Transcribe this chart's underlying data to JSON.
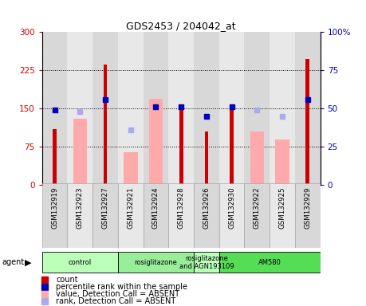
{
  "title": "GDS2453 / 204042_at",
  "samples": [
    "GSM132919",
    "GSM132923",
    "GSM132927",
    "GSM132921",
    "GSM132924",
    "GSM132928",
    "GSM132926",
    "GSM132930",
    "GSM132922",
    "GSM132925",
    "GSM132929"
  ],
  "red_counts": [
    110,
    0,
    237,
    0,
    0,
    152,
    105,
    152,
    0,
    0,
    248
  ],
  "pink_values": [
    0,
    130,
    0,
    65,
    170,
    0,
    0,
    0,
    105,
    90,
    0
  ],
  "blue_ranks_pct": [
    49,
    0,
    56,
    0,
    51,
    51,
    45,
    51,
    0,
    0,
    56
  ],
  "lavender_ranks_pct": [
    0,
    48,
    0,
    36,
    0,
    0,
    0,
    0,
    49,
    45,
    0
  ],
  "agent_groups": [
    {
      "label": "control",
      "start": 0,
      "end": 3,
      "color": "#bbffbb"
    },
    {
      "label": "rosiglitazone",
      "start": 3,
      "end": 6,
      "color": "#99ee99"
    },
    {
      "label": "rosiglitazone\nand AGN193109",
      "start": 6,
      "end": 7,
      "color": "#bbffbb"
    },
    {
      "label": "AM580",
      "start": 7,
      "end": 11,
      "color": "#55dd55"
    }
  ],
  "ylim_left": [
    0,
    300
  ],
  "ylim_right": [
    0,
    100
  ],
  "yticks_left": [
    0,
    75,
    150,
    225,
    300
  ],
  "yticks_right": [
    0,
    25,
    50,
    75,
    100
  ],
  "red_color": "#cc0000",
  "pink_color": "#ffaaaa",
  "blue_color": "#0000bb",
  "lavender_color": "#aaaaee",
  "col_bg_even": "#d8d8d8",
  "col_bg_odd": "#e8e8e8"
}
